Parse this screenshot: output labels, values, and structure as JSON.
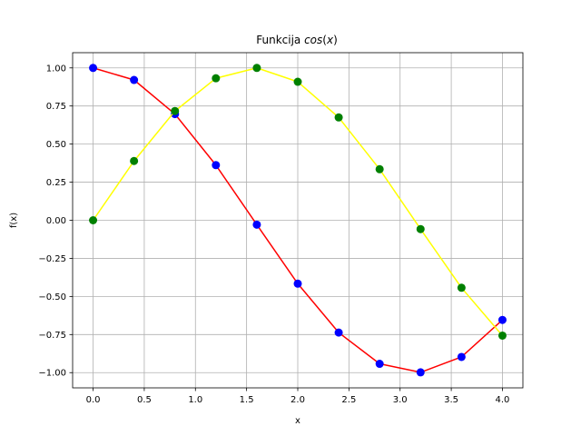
{
  "chart_data": {
    "type": "line",
    "title": {
      "prefix": "Funkcija ",
      "func": "cos",
      "open_paren": "(",
      "arg": "x",
      "close_paren": ")"
    },
    "xlabel": "x",
    "ylabel": "f(x)",
    "xlim": [
      -0.2,
      4.2
    ],
    "ylim": [
      -1.0999,
      1.0999
    ],
    "xticks": [
      0.0,
      0.5,
      1.0,
      1.5,
      2.0,
      2.5,
      3.0,
      3.5,
      4.0
    ],
    "xtick_labels": [
      "0.0",
      "0.5",
      "1.0",
      "1.5",
      "2.0",
      "2.5",
      "3.0",
      "3.5",
      "4.0"
    ],
    "yticks": [
      1.0,
      0.75,
      0.5,
      0.25,
      0.0,
      -0.25,
      -0.5,
      -0.75,
      -1.0
    ],
    "ytick_labels": [
      "1.00",
      "0.75",
      "0.50",
      "0.25",
      "0.00",
      "−0.25",
      "−0.50",
      "−0.75",
      "−1.00"
    ],
    "grid": true,
    "x": [
      0.0,
      0.4,
      0.8,
      1.2,
      1.6,
      2.0,
      2.4,
      2.8,
      3.2,
      3.6,
      4.0
    ],
    "series": [
      {
        "line_color": "#ff0000",
        "marker_color": "#0000ff",
        "values": [
          1.0,
          0.921,
          0.697,
          0.362,
          -0.029,
          -0.416,
          -0.737,
          -0.942,
          -0.998,
          -0.897,
          -0.654
        ]
      },
      {
        "line_color": "#ffff00",
        "marker_color": "#008000",
        "values": [
          0.0,
          0.389,
          0.717,
          0.932,
          1.0,
          0.909,
          0.675,
          0.335,
          -0.058,
          -0.443,
          -0.757
        ]
      }
    ]
  }
}
